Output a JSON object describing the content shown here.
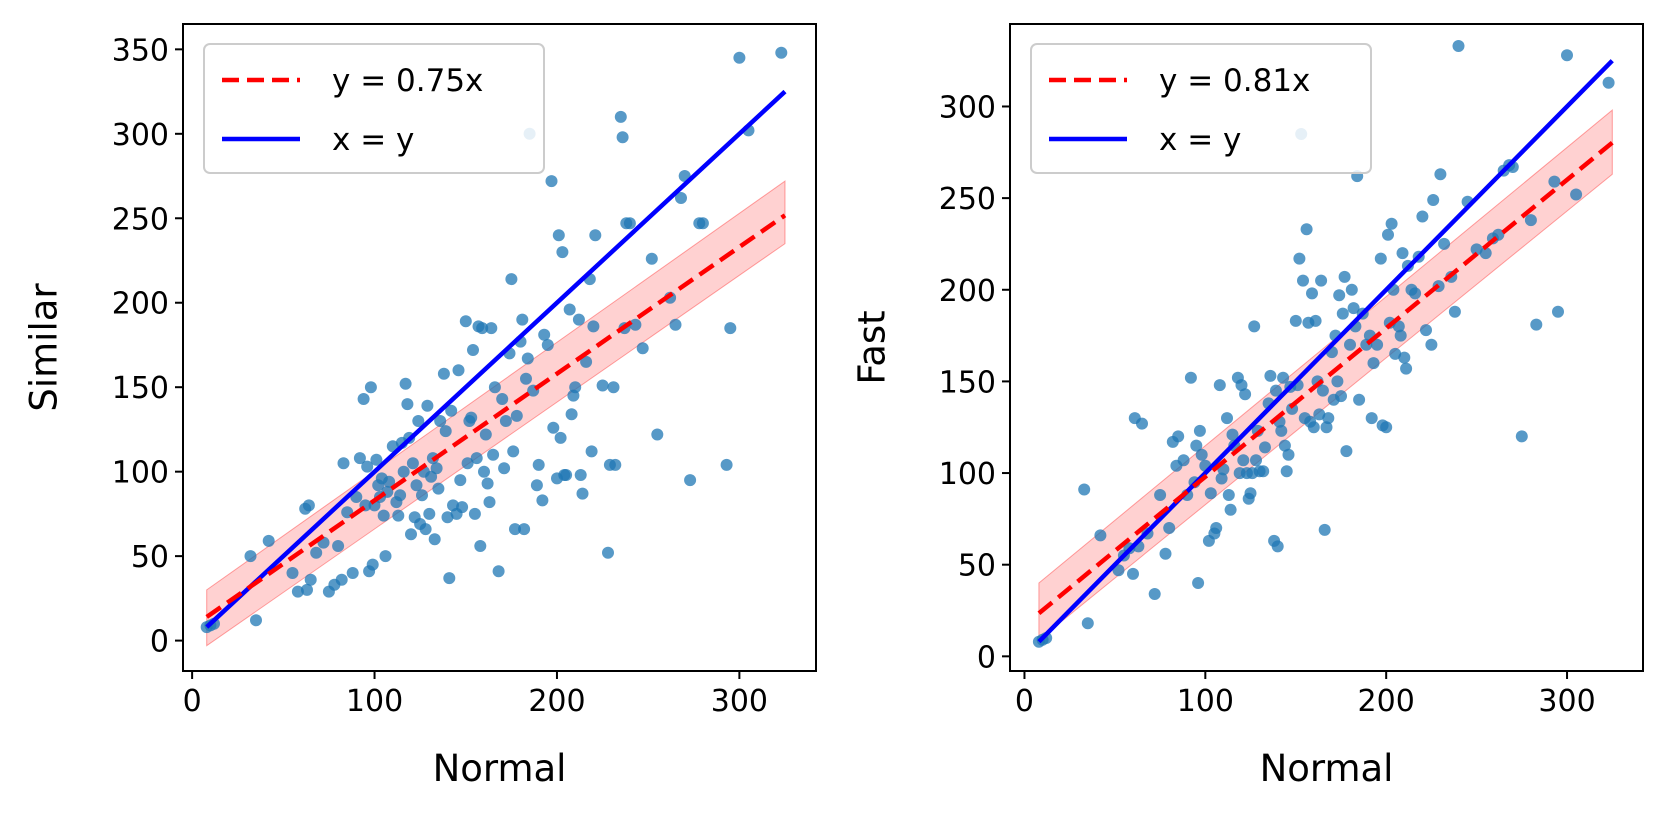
{
  "chart_data": [
    {
      "type": "scatter",
      "xlabel": "Normal",
      "ylabel": "Similar",
      "xlim": [
        -5,
        342
      ],
      "ylim": [
        -18,
        365
      ],
      "xticks": [
        0,
        100,
        200,
        300
      ],
      "yticks": [
        0,
        50,
        100,
        150,
        200,
        250,
        300,
        350
      ],
      "legend_position": "top-left",
      "legend": [
        {
          "label": "y = 0.75x",
          "style": "dashed",
          "color": "#ff0000"
        },
        {
          "label": "x = y",
          "style": "solid",
          "color": "#0000ff"
        }
      ],
      "fit": {
        "slope": 0.75,
        "intercept": 8,
        "x_range": [
          8,
          325
        ],
        "band": [
          [
            8,
            30,
            -3
          ],
          [
            325,
            272,
            235
          ]
        ],
        "color": "#ff0000"
      },
      "identity": {
        "x_range": [
          8,
          325
        ],
        "color": "#0000ff"
      },
      "points_color": "#1f77b4",
      "points": [
        [
          8,
          8
        ],
        [
          10,
          9
        ],
        [
          12,
          10
        ],
        [
          32,
          50
        ],
        [
          35,
          12
        ],
        [
          42,
          59
        ],
        [
          55,
          40
        ],
        [
          58,
          29
        ],
        [
          62,
          78
        ],
        [
          63,
          30
        ],
        [
          64,
          80
        ],
        [
          65,
          36
        ],
        [
          68,
          52
        ],
        [
          72,
          58
        ],
        [
          75,
          29
        ],
        [
          78,
          33
        ],
        [
          80,
          56
        ],
        [
          82,
          36
        ],
        [
          83,
          105
        ],
        [
          85,
          76
        ],
        [
          88,
          40
        ],
        [
          90,
          85
        ],
        [
          92,
          108
        ],
        [
          94,
          143
        ],
        [
          95,
          80
        ],
        [
          96,
          103
        ],
        [
          97,
          41
        ],
        [
          98,
          150
        ],
        [
          99,
          45
        ],
        [
          100,
          80
        ],
        [
          101,
          107
        ],
        [
          102,
          92
        ],
        [
          103,
          85
        ],
        [
          104,
          96
        ],
        [
          105,
          74
        ],
        [
          106,
          50
        ],
        [
          107,
          88
        ],
        [
          108,
          94
        ],
        [
          110,
          115
        ],
        [
          112,
          82
        ],
        [
          113,
          74
        ],
        [
          114,
          86
        ],
        [
          115,
          117
        ],
        [
          116,
          100
        ],
        [
          117,
          152
        ],
        [
          118,
          140
        ],
        [
          119,
          120
        ],
        [
          120,
          63
        ],
        [
          121,
          105
        ],
        [
          122,
          73
        ],
        [
          123,
          92
        ],
        [
          124,
          130
        ],
        [
          125,
          69
        ],
        [
          126,
          86
        ],
        [
          127,
          100
        ],
        [
          128,
          66
        ],
        [
          129,
          139
        ],
        [
          130,
          75
        ],
        [
          131,
          97
        ],
        [
          132,
          108
        ],
        [
          133,
          60
        ],
        [
          134,
          102
        ],
        [
          135,
          90
        ],
        [
          136,
          130
        ],
        [
          138,
          158
        ],
        [
          139,
          124
        ],
        [
          140,
          73
        ],
        [
          141,
          37
        ],
        [
          142,
          136
        ],
        [
          143,
          80
        ],
        [
          145,
          75
        ],
        [
          146,
          160
        ],
        [
          147,
          95
        ],
        [
          148,
          79
        ],
        [
          150,
          189
        ],
        [
          151,
          105
        ],
        [
          152,
          130
        ],
        [
          153,
          132
        ],
        [
          154,
          172
        ],
        [
          155,
          75
        ],
        [
          156,
          108
        ],
        [
          157,
          186
        ],
        [
          158,
          56
        ],
        [
          159,
          185
        ],
        [
          160,
          100
        ],
        [
          161,
          122
        ],
        [
          162,
          93
        ],
        [
          163,
          82
        ],
        [
          164,
          185
        ],
        [
          165,
          110
        ],
        [
          166,
          150
        ],
        [
          168,
          41
        ],
        [
          170,
          143
        ],
        [
          171,
          102
        ],
        [
          172,
          130
        ],
        [
          174,
          170
        ],
        [
          175,
          214
        ],
        [
          176,
          112
        ],
        [
          177,
          66
        ],
        [
          178,
          133
        ],
        [
          180,
          177
        ],
        [
          181,
          190
        ],
        [
          182,
          66
        ],
        [
          183,
          155
        ],
        [
          184,
          167
        ],
        [
          185,
          300
        ],
        [
          187,
          148
        ],
        [
          189,
          92
        ],
        [
          190,
          104
        ],
        [
          192,
          83
        ],
        [
          193,
          181
        ],
        [
          195,
          175
        ],
        [
          197,
          272
        ],
        [
          198,
          126
        ],
        [
          200,
          96
        ],
        [
          201,
          240
        ],
        [
          202,
          120
        ],
        [
          203,
          230
        ],
        [
          204,
          98
        ],
        [
          205,
          98
        ],
        [
          207,
          196
        ],
        [
          208,
          134
        ],
        [
          209,
          145
        ],
        [
          210,
          150
        ],
        [
          212,
          190
        ],
        [
          213,
          98
        ],
        [
          214,
          87
        ],
        [
          216,
          165
        ],
        [
          218,
          214
        ],
        [
          219,
          112
        ],
        [
          220,
          186
        ],
        [
          221,
          240
        ],
        [
          225,
          151
        ],
        [
          228,
          52
        ],
        [
          229,
          104
        ],
        [
          231,
          150
        ],
        [
          232,
          104
        ],
        [
          235,
          310
        ],
        [
          236,
          298
        ],
        [
          237,
          185
        ],
        [
          238,
          247
        ],
        [
          240,
          247
        ],
        [
          243,
          187
        ],
        [
          247,
          173
        ],
        [
          252,
          226
        ],
        [
          255,
          122
        ],
        [
          262,
          203
        ],
        [
          265,
          187
        ],
        [
          268,
          262
        ],
        [
          270,
          275
        ],
        [
          273,
          95
        ],
        [
          278,
          247
        ],
        [
          280,
          247
        ],
        [
          293,
          104
        ],
        [
          295,
          185
        ],
        [
          300,
          345
        ],
        [
          305,
          302
        ],
        [
          323,
          348
        ]
      ]
    },
    {
      "type": "scatter",
      "xlabel": "Normal",
      "ylabel": "Fast",
      "xlim": [
        -8,
        342
      ],
      "ylim": [
        -8,
        345
      ],
      "xticks": [
        0,
        100,
        200,
        300
      ],
      "yticks": [
        0,
        50,
        100,
        150,
        200,
        250,
        300
      ],
      "legend_position": "top-left",
      "legend": [
        {
          "label": "y = 0.81x",
          "style": "dashed",
          "color": "#ff0000"
        },
        {
          "label": "x = y",
          "style": "solid",
          "color": "#0000ff"
        }
      ],
      "fit": {
        "slope": 0.81,
        "intercept": 17,
        "x_range": [
          8,
          325
        ],
        "band": [
          [
            8,
            40,
            9
          ],
          [
            325,
            298,
            263
          ]
        ],
        "color": "#ff0000"
      },
      "identity": {
        "x_range": [
          8,
          325
        ],
        "color": "#0000ff"
      },
      "points_color": "#1f77b4",
      "points": [
        [
          8,
          8
        ],
        [
          10,
          9
        ],
        [
          12,
          10
        ],
        [
          33,
          91
        ],
        [
          35,
          18
        ],
        [
          42,
          66
        ],
        [
          52,
          47
        ],
        [
          55,
          55
        ],
        [
          58,
          59
        ],
        [
          60,
          45
        ],
        [
          61,
          130
        ],
        [
          63,
          60
        ],
        [
          65,
          127
        ],
        [
          68,
          67
        ],
        [
          72,
          34
        ],
        [
          75,
          88
        ],
        [
          78,
          56
        ],
        [
          80,
          70
        ],
        [
          82,
          117
        ],
        [
          84,
          104
        ],
        [
          85,
          120
        ],
        [
          88,
          107
        ],
        [
          90,
          88
        ],
        [
          92,
          152
        ],
        [
          94,
          95
        ],
        [
          95,
          115
        ],
        [
          96,
          40
        ],
        [
          97,
          123
        ],
        [
          98,
          110
        ],
        [
          100,
          104
        ],
        [
          102,
          63
        ],
        [
          103,
          89
        ],
        [
          105,
          67
        ],
        [
          106,
          70
        ],
        [
          108,
          148
        ],
        [
          109,
          97
        ],
        [
          110,
          102
        ],
        [
          112,
          130
        ],
        [
          113,
          88
        ],
        [
          114,
          80
        ],
        [
          115,
          121
        ],
        [
          116,
          115
        ],
        [
          118,
          152
        ],
        [
          119,
          100
        ],
        [
          120,
          148
        ],
        [
          121,
          107
        ],
        [
          122,
          143
        ],
        [
          123,
          100
        ],
        [
          124,
          86
        ],
        [
          125,
          89
        ],
        [
          126,
          100
        ],
        [
          127,
          180
        ],
        [
          128,
          107
        ],
        [
          129,
          123
        ],
        [
          130,
          101
        ],
        [
          132,
          101
        ],
        [
          133,
          114
        ],
        [
          135,
          138
        ],
        [
          136,
          153
        ],
        [
          138,
          63
        ],
        [
          139,
          145
        ],
        [
          140,
          60
        ],
        [
          141,
          128
        ],
        [
          142,
          123
        ],
        [
          143,
          152
        ],
        [
          144,
          115
        ],
        [
          145,
          101
        ],
        [
          146,
          110
        ],
        [
          147,
          147
        ],
        [
          148,
          135
        ],
        [
          150,
          183
        ],
        [
          151,
          148
        ],
        [
          152,
          217
        ],
        [
          153,
          285
        ],
        [
          154,
          205
        ],
        [
          155,
          130
        ],
        [
          156,
          233
        ],
        [
          157,
          182
        ],
        [
          158,
          128
        ],
        [
          159,
          198
        ],
        [
          160,
          125
        ],
        [
          161,
          183
        ],
        [
          162,
          150
        ],
        [
          163,
          132
        ],
        [
          164,
          205
        ],
        [
          165,
          145
        ],
        [
          166,
          69
        ],
        [
          167,
          125
        ],
        [
          168,
          130
        ],
        [
          170,
          166
        ],
        [
          171,
          140
        ],
        [
          172,
          175
        ],
        [
          173,
          150
        ],
        [
          174,
          197
        ],
        [
          175,
          142
        ],
        [
          176,
          187
        ],
        [
          177,
          207
        ],
        [
          178,
          112
        ],
        [
          180,
          170
        ],
        [
          181,
          200
        ],
        [
          182,
          190
        ],
        [
          183,
          180
        ],
        [
          184,
          262
        ],
        [
          185,
          140
        ],
        [
          187,
          187
        ],
        [
          189,
          170
        ],
        [
          191,
          175
        ],
        [
          192,
          130
        ],
        [
          193,
          160
        ],
        [
          195,
          170
        ],
        [
          197,
          217
        ],
        [
          198,
          126
        ],
        [
          200,
          125
        ],
        [
          201,
          230
        ],
        [
          202,
          182
        ],
        [
          203,
          236
        ],
        [
          204,
          200
        ],
        [
          205,
          165
        ],
        [
          207,
          180
        ],
        [
          208,
          175
        ],
        [
          209,
          220
        ],
        [
          210,
          163
        ],
        [
          211,
          157
        ],
        [
          212,
          213
        ],
        [
          214,
          200
        ],
        [
          216,
          198
        ],
        [
          218,
          218
        ],
        [
          220,
          240
        ],
        [
          222,
          178
        ],
        [
          225,
          170
        ],
        [
          226,
          249
        ],
        [
          229,
          202
        ],
        [
          230,
          263
        ],
        [
          232,
          225
        ],
        [
          236,
          207
        ],
        [
          238,
          188
        ],
        [
          240,
          333
        ],
        [
          245,
          248
        ],
        [
          250,
          222
        ],
        [
          255,
          220
        ],
        [
          259,
          228
        ],
        [
          262,
          230
        ],
        [
          265,
          265
        ],
        [
          268,
          268
        ],
        [
          270,
          267
        ],
        [
          275,
          120
        ],
        [
          280,
          238
        ],
        [
          283,
          181
        ],
        [
          293,
          259
        ],
        [
          295,
          188
        ],
        [
          300,
          328
        ],
        [
          305,
          252
        ],
        [
          323,
          313
        ]
      ]
    }
  ]
}
